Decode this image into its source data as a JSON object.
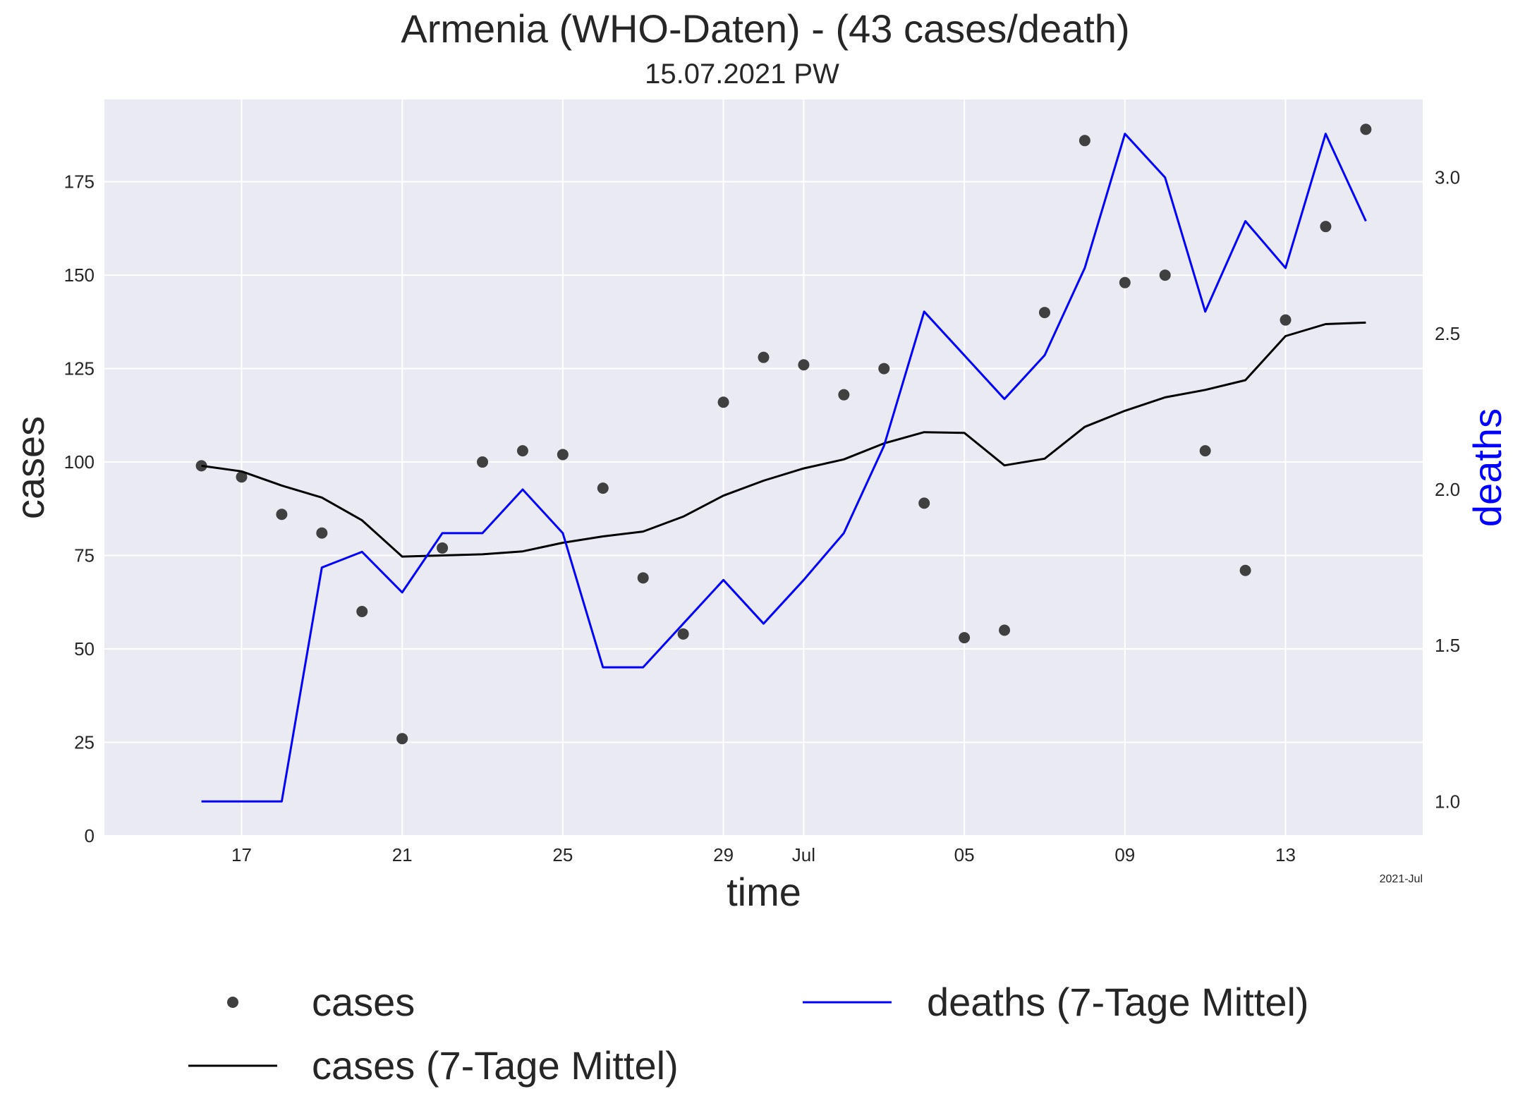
{
  "chart_data": {
    "type": "line",
    "title": "Armenia (WHO-Daten) - (43 cases/death)",
    "subtitle": "15.07.2021 PW",
    "xlabel": "time",
    "ylabel_left": "cases",
    "ylabel_right": "deaths",
    "x_offset_label": "2021-Jul",
    "dates": [
      "2021-06-16",
      "2021-06-17",
      "2021-06-18",
      "2021-06-19",
      "2021-06-20",
      "2021-06-21",
      "2021-06-22",
      "2021-06-23",
      "2021-06-24",
      "2021-06-25",
      "2021-06-26",
      "2021-06-27",
      "2021-06-28",
      "2021-06-29",
      "2021-06-30",
      "2021-07-01",
      "2021-07-02",
      "2021-07-03",
      "2021-07-04",
      "2021-07-05",
      "2021-07-06",
      "2021-07-07",
      "2021-07-08",
      "2021-07-09",
      "2021-07-10",
      "2021-07-11",
      "2021-07-12",
      "2021-07-13",
      "2021-07-14",
      "2021-07-15"
    ],
    "x_ticks": [
      {
        "date": "2021-06-17",
        "label": "17"
      },
      {
        "date": "2021-06-21",
        "label": "21"
      },
      {
        "date": "2021-06-25",
        "label": "25"
      },
      {
        "date": "2021-06-29",
        "label": "29"
      },
      {
        "date": "2021-07-01",
        "label": "Jul"
      },
      {
        "date": "2021-07-05",
        "label": "05"
      },
      {
        "date": "2021-07-09",
        "label": "09"
      },
      {
        "date": "2021-07-13",
        "label": "13"
      }
    ],
    "xlim": [
      "2021-06-13 14:00",
      "2021-07-16 10:00"
    ],
    "ylim_left": [
      0,
      197
    ],
    "ylim_right": [
      0.89,
      3.25
    ],
    "y_ticks_left": [
      0,
      25,
      50,
      75,
      100,
      125,
      150,
      175
    ],
    "y_ticks_right": [
      1.0,
      1.5,
      2.0,
      2.5,
      3.0
    ],
    "grid": true,
    "legend_position": "bottom",
    "series": [
      {
        "name": "cases",
        "kind": "scatter",
        "axis": "left",
        "color": "#404040",
        "values": [
          99,
          96,
          86,
          81,
          60,
          26,
          77,
          100,
          103,
          102,
          93,
          69,
          54,
          116,
          128,
          126,
          118,
          125,
          89,
          53,
          55,
          140,
          186,
          148,
          150,
          103,
          71,
          138,
          163,
          189
        ]
      },
      {
        "name": "cases (7-Tage Mittel)",
        "kind": "line",
        "axis": "left",
        "color": "#000000",
        "values": [
          99,
          97.5,
          93.7,
          90.5,
          84.4,
          74.7,
          75.0,
          75.3,
          76.1,
          78.4,
          80.1,
          81.4,
          85.4,
          91.0,
          95.0,
          98.3,
          100.7,
          105.0,
          108.0,
          107.8,
          99.1,
          100.9,
          109.4,
          113.7,
          117.3,
          119.3,
          121.9,
          133.7,
          136.9,
          137.3
        ]
      },
      {
        "name": "deaths (7-Tage Mittel)",
        "kind": "line",
        "axis": "right",
        "color": "#0000ff",
        "values": [
          1.0,
          1.0,
          1.0,
          1.75,
          1.8,
          1.67,
          1.86,
          1.86,
          2.0,
          1.86,
          1.43,
          1.43,
          1.57,
          1.71,
          1.57,
          1.71,
          1.86,
          2.14,
          2.57,
          2.43,
          2.29,
          2.43,
          2.71,
          3.14,
          3.0,
          2.57,
          2.86,
          2.71,
          3.14,
          2.86
        ]
      }
    ]
  }
}
